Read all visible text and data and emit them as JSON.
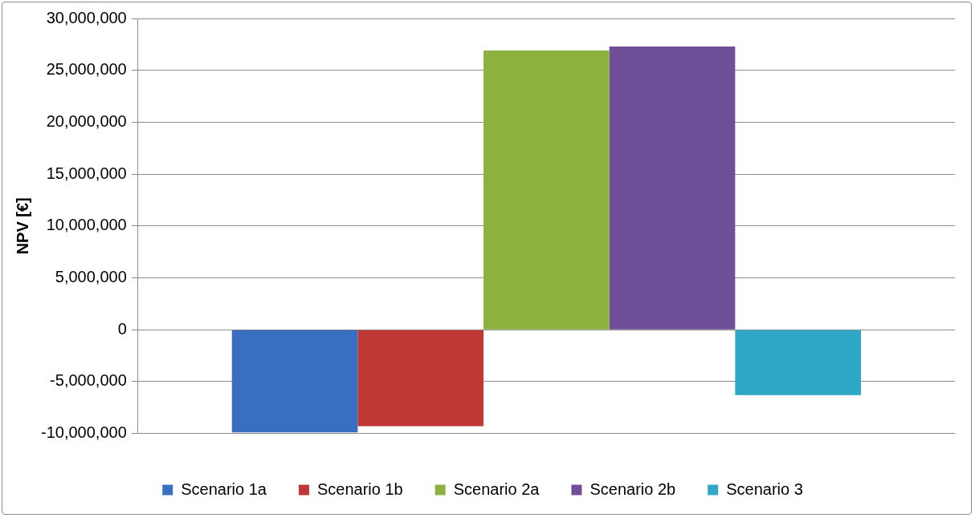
{
  "chart_data": {
    "type": "bar",
    "ylabel": "NPV [€]",
    "categories": [
      null
    ],
    "series": [
      {
        "name": "Scenario 1a",
        "color": "#3a6ec0",
        "values": [
          -9900000
        ]
      },
      {
        "name": "Scenario 1b",
        "color": "#bf3836",
        "values": [
          -9300000
        ]
      },
      {
        "name": "Scenario 2a",
        "color": "#8cb13e",
        "values": [
          26900000
        ]
      },
      {
        "name": "Scenario 2b",
        "color": "#6f4f98",
        "values": [
          27300000
        ]
      },
      {
        "name": "Scenario 3",
        "color": "#2ea8c6",
        "values": [
          -6300000
        ]
      }
    ],
    "ylim": [
      -10000000,
      30000000
    ],
    "yticks": [
      {
        "value": -10000000,
        "label": "-10,000,000"
      },
      {
        "value": -5000000,
        "label": "-5,000,000"
      },
      0,
      {
        "value": 5000000,
        "label": "5,000,000"
      },
      {
        "value": 10000000,
        "label": "10,000,000"
      },
      {
        "value": 15000000,
        "label": "15,000,000"
      },
      {
        "value": 20000000,
        "label": "20,000,000"
      },
      {
        "value": 25000000,
        "label": "25,000,000"
      },
      {
        "value": 30000000,
        "label": "30,000,000"
      }
    ],
    "grid": "y",
    "legend": "bottom"
  }
}
